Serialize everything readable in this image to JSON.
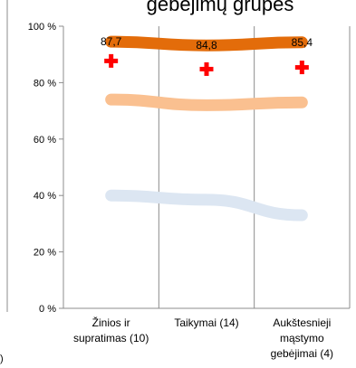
{
  "chart_data": {
    "type": "line",
    "title": "gebėjimų grupes",
    "xlabel": "",
    "ylabel": "",
    "categories": [
      [
        "Žinios ir",
        "supratimas (10)"
      ],
      [
        "Taikymai (14)"
      ],
      [
        "Aukštesnieji",
        "mąstymo",
        "gebėjimai (4)"
      ]
    ],
    "y_ticks": [
      "0 %",
      "20 %",
      "40 %",
      "60 %",
      "80 %",
      "100 %"
    ],
    "ylim": [
      0,
      100
    ],
    "grid": "vertical-lines",
    "legend": "none",
    "series": [
      {
        "values": [
          94.5,
          93.2,
          94.3
        ],
        "color": "#e36c0a",
        "style": "thick-line",
        "labels": [
          "87,7",
          "84,8",
          "85,4"
        ]
      },
      {
        "values": [
          87.7,
          84.8,
          85.4
        ],
        "color": "#ff0000",
        "style": "cross-marker"
      },
      {
        "values": [
          74.0,
          72.0,
          73.0
        ],
        "color": "#fac090",
        "style": "thick-line"
      },
      {
        "values": [
          40.0,
          38.5,
          33.0
        ],
        "color": "#dce6f2",
        "style": "thick-line"
      }
    ]
  },
  "fragments": {
    "left_partial_label": ")"
  }
}
